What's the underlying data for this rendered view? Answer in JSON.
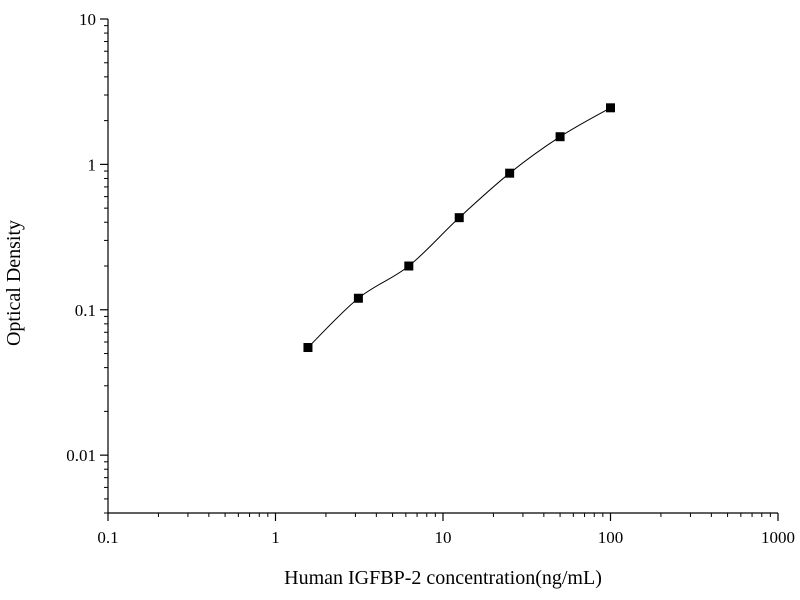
{
  "chart_data": {
    "type": "scatter",
    "title": "",
    "xlabel": "Human IGFBP-2 concentration(ng/mL)",
    "ylabel": "Optical Density",
    "x_scale": "log",
    "y_scale": "log",
    "xlim": [
      0.1,
      1000
    ],
    "ylim": [
      0.004,
      10
    ],
    "x_ticks": [
      0.1,
      1,
      10,
      100,
      1000
    ],
    "x_tick_labels": [
      "0.1",
      "1",
      "10",
      "100",
      "1000"
    ],
    "y_ticks": [
      0.01,
      0.1,
      1,
      10
    ],
    "y_tick_labels": [
      "0.01",
      "0.1",
      "1",
      "10"
    ],
    "grid": false,
    "legend": "none",
    "series": [
      {
        "x": [
          1.5625,
          3.125,
          6.25,
          12.5,
          25,
          50,
          100
        ],
        "y": [
          0.055,
          0.12,
          0.2,
          0.43,
          0.87,
          1.55,
          2.45
        ],
        "marker": "square",
        "fitted_curve": true
      }
    ],
    "colors": {
      "marker": "#000000",
      "curve": "#000000",
      "axis": "#000000"
    }
  }
}
